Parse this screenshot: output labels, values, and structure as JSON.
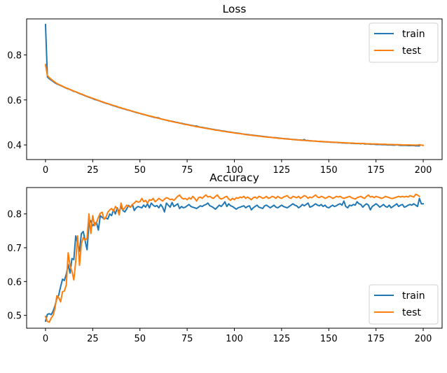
{
  "chart_data": [
    {
      "type": "line",
      "title": "Loss",
      "xlabel": "",
      "ylabel": "",
      "xlim": [
        -10,
        210
      ],
      "ylim": [
        0.335,
        0.96
      ],
      "xticks": [
        0,
        25,
        50,
        75,
        100,
        125,
        150,
        175,
        200
      ],
      "xtick_labels": [
        "0",
        "25",
        "50",
        "75",
        "100",
        "125",
        "150",
        "175",
        "200"
      ],
      "yticks": [
        0.4,
        0.6,
        0.8
      ],
      "ytick_labels": [
        "0.4",
        "0.6",
        "0.8"
      ],
      "grid": false,
      "legend": {
        "placement": "upper-right",
        "entries": [
          "train",
          "test"
        ]
      },
      "series": [
        {
          "name": "train",
          "color": "#1f77b4",
          "values": [
            0.935,
            0.702,
            0.694,
            0.688,
            0.682,
            0.676,
            0.671,
            0.668,
            0.664,
            0.66,
            0.656,
            0.652,
            0.649,
            0.646,
            0.642,
            0.638,
            0.636,
            0.632,
            0.628,
            0.625,
            0.622,
            0.618,
            0.615,
            0.612,
            0.609,
            0.606,
            0.602,
            0.6,
            0.597,
            0.594,
            0.591,
            0.588,
            0.585,
            0.583,
            0.58,
            0.577,
            0.574,
            0.572,
            0.569,
            0.566,
            0.564,
            0.561,
            0.559,
            0.556,
            0.554,
            0.552,
            0.549,
            0.547,
            0.544,
            0.542,
            0.54,
            0.537,
            0.535,
            0.533,
            0.531,
            0.528,
            0.526,
            0.524,
            0.522,
            0.521,
            0.52,
            0.516,
            0.514,
            0.512,
            0.51,
            0.508,
            0.506,
            0.505,
            0.503,
            0.501,
            0.5,
            0.497,
            0.496,
            0.494,
            0.492,
            0.491,
            0.489,
            0.487,
            0.486,
            0.484,
            0.484,
            0.481,
            0.479,
            0.478,
            0.476,
            0.475,
            0.473,
            0.472,
            0.47,
            0.469,
            0.467,
            0.466,
            0.465,
            0.463,
            0.462,
            0.461,
            0.459,
            0.458,
            0.457,
            0.455,
            0.454,
            0.453,
            0.452,
            0.451,
            0.449,
            0.448,
            0.447,
            0.446,
            0.445,
            0.444,
            0.443,
            0.442,
            0.441,
            0.44,
            0.439,
            0.438,
            0.437,
            0.436,
            0.435,
            0.434,
            0.433,
            0.432,
            0.432,
            0.431,
            0.43,
            0.429,
            0.428,
            0.427,
            0.427,
            0.426,
            0.425,
            0.424,
            0.424,
            0.423,
            0.422,
            0.422,
            0.421,
            0.424,
            0.419,
            0.42,
            0.418,
            0.418,
            0.417,
            0.417,
            0.416,
            0.415,
            0.415,
            0.414,
            0.414,
            0.413,
            0.413,
            0.412,
            0.412,
            0.411,
            0.411,
            0.41,
            0.41,
            0.409,
            0.409,
            0.408,
            0.408,
            0.408,
            0.407,
            0.407,
            0.406,
            0.406,
            0.406,
            0.405,
            0.407,
            0.404,
            0.404,
            0.404,
            0.403,
            0.403,
            0.403,
            0.402,
            0.402,
            0.402,
            0.401,
            0.401,
            0.401,
            0.4,
            0.4,
            0.4,
            0.399,
            0.399,
            0.401,
            0.399,
            0.398,
            0.398,
            0.398,
            0.398,
            0.397,
            0.397,
            0.397,
            0.397,
            0.396,
            0.396,
            0.396
          ]
        },
        {
          "name": "test",
          "color": "#ff7f0e",
          "values": [
            0.757,
            0.708,
            0.699,
            0.692,
            0.685,
            0.679,
            0.673,
            0.669,
            0.665,
            0.661,
            0.657,
            0.653,
            0.65,
            0.646,
            0.643,
            0.639,
            0.636,
            0.633,
            0.629,
            0.626,
            0.623,
            0.619,
            0.616,
            0.613,
            0.61,
            0.607,
            0.604,
            0.601,
            0.598,
            0.595,
            0.592,
            0.589,
            0.586,
            0.583,
            0.581,
            0.578,
            0.575,
            0.573,
            0.57,
            0.567,
            0.565,
            0.562,
            0.56,
            0.557,
            0.555,
            0.552,
            0.55,
            0.547,
            0.545,
            0.543,
            0.54,
            0.538,
            0.536,
            0.533,
            0.531,
            0.529,
            0.527,
            0.525,
            0.523,
            0.52,
            0.518,
            0.516,
            0.514,
            0.512,
            0.51,
            0.508,
            0.506,
            0.504,
            0.502,
            0.5,
            0.499,
            0.497,
            0.495,
            0.493,
            0.491,
            0.49,
            0.488,
            0.486,
            0.485,
            0.483,
            0.481,
            0.48,
            0.478,
            0.477,
            0.475,
            0.474,
            0.472,
            0.471,
            0.469,
            0.468,
            0.466,
            0.465,
            0.464,
            0.462,
            0.461,
            0.46,
            0.458,
            0.457,
            0.456,
            0.455,
            0.453,
            0.452,
            0.451,
            0.45,
            0.449,
            0.448,
            0.446,
            0.445,
            0.444,
            0.443,
            0.442,
            0.441,
            0.44,
            0.439,
            0.438,
            0.437,
            0.436,
            0.435,
            0.434,
            0.434,
            0.433,
            0.432,
            0.431,
            0.43,
            0.429,
            0.429,
            0.428,
            0.427,
            0.426,
            0.426,
            0.425,
            0.424,
            0.423,
            0.423,
            0.422,
            0.421,
            0.421,
            0.42,
            0.42,
            0.419,
            0.418,
            0.418,
            0.417,
            0.417,
            0.416,
            0.416,
            0.415,
            0.415,
            0.414,
            0.414,
            0.413,
            0.413,
            0.412,
            0.412,
            0.411,
            0.411,
            0.41,
            0.41,
            0.41,
            0.409,
            0.409,
            0.408,
            0.408,
            0.408,
            0.407,
            0.407,
            0.407,
            0.406,
            0.406,
            0.406,
            0.405,
            0.405,
            0.405,
            0.404,
            0.404,
            0.404,
            0.404,
            0.403,
            0.403,
            0.403,
            0.403,
            0.402,
            0.402,
            0.402,
            0.402,
            0.401,
            0.401,
            0.401,
            0.401,
            0.4,
            0.4,
            0.4,
            0.4,
            0.4,
            0.399,
            0.399,
            0.399,
            0.399,
            0.401,
            0.399,
            0.398
          ]
        }
      ]
    },
    {
      "type": "line",
      "title": "Accuracy",
      "xlabel": "",
      "ylabel": "",
      "xlim": [
        -10,
        210
      ],
      "ylim": [
        0.462,
        0.878
      ],
      "xticks": [
        0,
        25,
        50,
        75,
        100,
        125,
        150,
        175,
        200
      ],
      "xtick_labels": [
        "0",
        "25",
        "50",
        "75",
        "100",
        "125",
        "150",
        "175",
        "200"
      ],
      "yticks": [
        0.5,
        0.6,
        0.7,
        0.8
      ],
      "ytick_labels": [
        "0.5",
        "0.6",
        "0.7",
        "0.8"
      ],
      "grid": false,
      "legend": {
        "placement": "lower-right",
        "entries": [
          "train",
          "test"
        ]
      },
      "series": [
        {
          "name": "train",
          "color": "#1f77b4",
          "values": [
            0.483,
            0.503,
            0.505,
            0.502,
            0.512,
            0.528,
            0.55,
            0.56,
            0.585,
            0.607,
            0.603,
            0.622,
            0.65,
            0.625,
            0.668,
            0.665,
            0.735,
            0.712,
            0.69,
            0.742,
            0.748,
            0.72,
            0.694,
            0.77,
            0.78,
            0.765,
            0.772,
            0.775,
            0.752,
            0.795,
            0.79,
            0.785,
            0.788,
            0.785,
            0.8,
            0.795,
            0.812,
            0.8,
            0.818,
            0.805,
            0.822,
            0.81,
            0.806,
            0.815,
            0.825,
            0.82,
            0.828,
            0.81,
            0.818,
            0.822,
            0.82,
            0.818,
            0.826,
            0.82,
            0.83,
            0.818,
            0.832,
            0.826,
            0.822,
            0.825,
            0.818,
            0.828,
            0.82,
            0.806,
            0.832,
            0.826,
            0.82,
            0.834,
            0.822,
            0.826,
            0.83,
            0.816,
            0.822,
            0.818,
            0.82,
            0.824,
            0.828,
            0.822,
            0.82,
            0.818,
            0.816,
            0.82,
            0.824,
            0.822,
            0.826,
            0.828,
            0.832,
            0.824,
            0.822,
            0.818,
            0.814,
            0.82,
            0.826,
            0.822,
            0.828,
            0.836,
            0.822,
            0.83,
            0.824,
            0.822,
            0.818,
            0.814,
            0.818,
            0.82,
            0.822,
            0.824,
            0.818,
            0.822,
            0.824,
            0.812,
            0.818,
            0.822,
            0.826,
            0.82,
            0.818,
            0.816,
            0.824,
            0.826,
            0.822,
            0.818,
            0.822,
            0.826,
            0.82,
            0.818,
            0.822,
            0.826,
            0.822,
            0.82,
            0.818,
            0.822,
            0.826,
            0.83,
            0.826,
            0.824,
            0.818,
            0.822,
            0.828,
            0.824,
            0.828,
            0.832,
            0.82,
            0.822,
            0.826,
            0.83,
            0.826,
            0.824,
            0.828,
            0.822,
            0.826,
            0.82,
            0.818,
            0.822,
            0.826,
            0.822,
            0.824,
            0.828,
            0.83,
            0.826,
            0.838,
            0.822,
            0.818,
            0.826,
            0.824,
            0.828,
            0.826,
            0.836,
            0.83,
            0.828,
            0.82,
            0.826,
            0.83,
            0.826,
            0.812,
            0.822,
            0.826,
            0.83,
            0.826,
            0.82,
            0.824,
            0.828,
            0.822,
            0.82,
            0.826,
            0.818,
            0.822,
            0.826,
            0.83,
            0.822,
            0.826,
            0.828,
            0.82,
            0.822,
            0.826,
            0.828,
            0.826,
            0.83,
            0.826,
            0.822,
            0.846,
            0.83,
            0.83
          ]
        },
        {
          "name": "test",
          "color": "#ff7f0e",
          "values": [
            0.497,
            0.482,
            0.48,
            0.492,
            0.5,
            0.52,
            0.558,
            0.552,
            0.54,
            0.57,
            0.572,
            0.59,
            0.685,
            0.646,
            0.63,
            0.605,
            0.66,
            0.735,
            0.648,
            0.712,
            0.73,
            0.722,
            0.728,
            0.8,
            0.742,
            0.795,
            0.765,
            0.775,
            0.79,
            0.802,
            0.805,
            0.784,
            0.79,
            0.805,
            0.812,
            0.816,
            0.808,
            0.822,
            0.815,
            0.797,
            0.832,
            0.812,
            0.818,
            0.826,
            0.822,
            0.82,
            0.828,
            0.832,
            0.838,
            0.835,
            0.836,
            0.846,
            0.836,
            0.84,
            0.832,
            0.842,
            0.84,
            0.846,
            0.836,
            0.84,
            0.846,
            0.842,
            0.838,
            0.844,
            0.848,
            0.846,
            0.842,
            0.844,
            0.84,
            0.846,
            0.852,
            0.856,
            0.848,
            0.844,
            0.846,
            0.842,
            0.848,
            0.844,
            0.852,
            0.846,
            0.838,
            0.848,
            0.85,
            0.846,
            0.852,
            0.856,
            0.85,
            0.852,
            0.848,
            0.846,
            0.852,
            0.856,
            0.848,
            0.844,
            0.846,
            0.85,
            0.852,
            0.844,
            0.84,
            0.846,
            0.842,
            0.848,
            0.846,
            0.85,
            0.848,
            0.852,
            0.846,
            0.85,
            0.846,
            0.842,
            0.848,
            0.85,
            0.846,
            0.852,
            0.85,
            0.846,
            0.848,
            0.852,
            0.846,
            0.848,
            0.852,
            0.85,
            0.846,
            0.852,
            0.848,
            0.846,
            0.85,
            0.852,
            0.854,
            0.848,
            0.846,
            0.852,
            0.85,
            0.848,
            0.852,
            0.846,
            0.85,
            0.854,
            0.852,
            0.846,
            0.85,
            0.848,
            0.852,
            0.856,
            0.85,
            0.848,
            0.852,
            0.85,
            0.846,
            0.848,
            0.852,
            0.85,
            0.846,
            0.848,
            0.852,
            0.85,
            0.852,
            0.848,
            0.846,
            0.848,
            0.85,
            0.852,
            0.848,
            0.846,
            0.844,
            0.848,
            0.85,
            0.852,
            0.848,
            0.846,
            0.852,
            0.856,
            0.85,
            0.852,
            0.848,
            0.852,
            0.85,
            0.848,
            0.846,
            0.848,
            0.852,
            0.85,
            0.848,
            0.846,
            0.846,
            0.848,
            0.85,
            0.852,
            0.85,
            0.852,
            0.85,
            0.852,
            0.85,
            0.854,
            0.852,
            0.85,
            0.858,
            0.856,
            0.852
          ]
        }
      ]
    }
  ]
}
